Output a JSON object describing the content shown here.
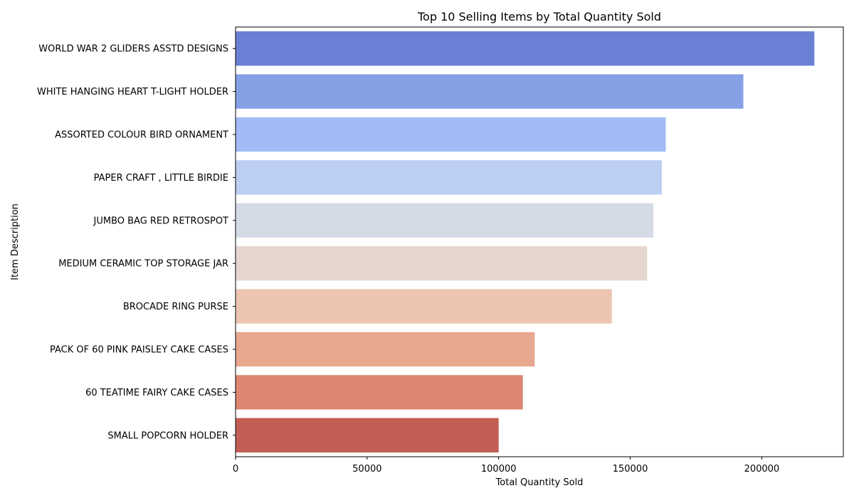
{
  "chart_data": {
    "type": "bar",
    "orientation": "horizontal",
    "title": "Top 10 Selling Items by Total Quantity Sold",
    "xlabel": "Total Quantity Sold",
    "ylabel": "Item Description",
    "xlim": [
      0,
      231000
    ],
    "xticks": [
      0,
      50000,
      100000,
      150000,
      200000
    ],
    "xtick_labels": [
      "0",
      "50000",
      "100000",
      "150000",
      "200000"
    ],
    "grid": false,
    "legend": "none",
    "categories": [
      "WORLD WAR 2 GLIDERS ASSTD DESIGNS",
      "WHITE HANGING HEART T-LIGHT HOLDER",
      "ASSORTED COLOUR BIRD ORNAMENT",
      "PAPER CRAFT , LITTLE BIRDIE",
      "JUMBO BAG RED RETROSPOT",
      "MEDIUM CERAMIC TOP STORAGE JAR",
      "BROCADE RING PURSE ",
      "PACK OF 60 PINK PAISLEY CAKE CASES",
      "60 TEATIME FAIRY CAKE CASES",
      "SMALL POPCORN HOLDER"
    ],
    "values": [
      220000,
      193000,
      163500,
      162000,
      158800,
      156400,
      143000,
      113700,
      109200,
      100000
    ],
    "colors": [
      "#6a80d4",
      "#86a0e6",
      "#a2bbf4",
      "#bccff2",
      "#d4dae6",
      "#e5d7cf",
      "#ecc4b0",
      "#e8a890",
      "#dc8772",
      "#c35e55"
    ]
  }
}
